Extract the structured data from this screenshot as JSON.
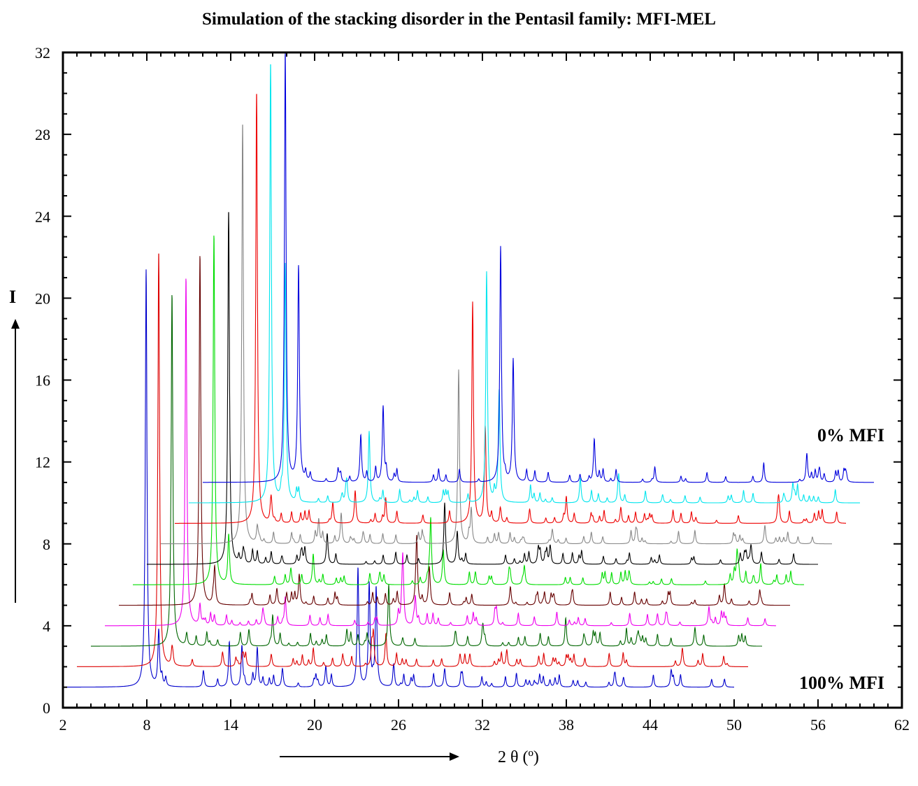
{
  "chart_data": {
    "type": "line",
    "title": "Simulation of the stacking disorder in the Pentasil family: MFI-MEL",
    "xlabel": "2 θ  (º)",
    "ylabel": "I",
    "xlim": [
      2,
      62
    ],
    "ylim": [
      0,
      32
    ],
    "xticks": [
      "2",
      "8",
      "14",
      "20",
      "26",
      "32",
      "38",
      "44",
      "50",
      "56",
      "62"
    ],
    "yticks": [
      "0",
      "4",
      "8",
      "12",
      "16",
      "20",
      "24",
      "28",
      "32"
    ],
    "grid": false,
    "annotations": {
      "bottom_series_label": "100% MFI",
      "top_series_label": "0% MFI"
    },
    "series": [
      {
        "color": "#0000cc",
        "x_start": 2.0,
        "x_end": 50.0,
        "baseline": 1.0,
        "peaks": [
          [
            7.95,
            21.4
          ],
          [
            8.85,
            3.7
          ],
          [
            13.9,
            3.2
          ],
          [
            14.8,
            3.0
          ],
          [
            15.9,
            2.9
          ],
          [
            17.7,
            1.9
          ],
          [
            20.8,
            2.0
          ],
          [
            23.1,
            6.8
          ],
          [
            23.9,
            5.8
          ],
          [
            24.4,
            5.8
          ],
          [
            29.3,
            1.9
          ],
          [
            45.5,
            1.8
          ]
        ]
      },
      {
        "color": "#dd0000",
        "x_start": 3.0,
        "x_end": 51.0,
        "baseline": 2.0,
        "peaks": [
          [
            8.85,
            22.3
          ],
          [
            9.8,
            2.8
          ],
          [
            14.9,
            2.5
          ],
          [
            16.9,
            2.6
          ],
          [
            24.2,
            3.6
          ],
          [
            25.1,
            3.6
          ],
          [
            30.4,
            2.6
          ],
          [
            31.1,
            2.6
          ],
          [
            46.3,
            2.9
          ]
        ]
      },
      {
        "color": "#006600",
        "x_start": 4.0,
        "x_end": 52.0,
        "baseline": 3.0,
        "peaks": [
          [
            9.8,
            20.2
          ],
          [
            10.85,
            3.6
          ],
          [
            15.3,
            3.8
          ],
          [
            17.0,
            4.5
          ],
          [
            25.3,
            6.0
          ],
          [
            26.3,
            3.4
          ],
          [
            32.0,
            3.6
          ],
          [
            47.2,
            3.9
          ]
        ]
      },
      {
        "color": "#ee00ee",
        "x_start": 5.0,
        "x_end": 53.0,
        "baseline": 4.0,
        "peaks": [
          [
            10.8,
            21.0
          ],
          [
            11.8,
            5.0
          ],
          [
            16.3,
            4.8
          ],
          [
            17.9,
            5.4
          ],
          [
            26.3,
            7.2
          ],
          [
            27.2,
            5.4
          ],
          [
            33.0,
            4.8
          ],
          [
            48.2,
            4.9
          ]
        ]
      },
      {
        "color": "#660000",
        "x_start": 6.0,
        "x_end": 54.0,
        "baseline": 5.0,
        "peaks": [
          [
            11.8,
            22.1
          ],
          [
            12.85,
            6.8
          ],
          [
            17.3,
            5.8
          ],
          [
            18.9,
            6.5
          ],
          [
            27.3,
            8.3
          ],
          [
            28.2,
            6.8
          ],
          [
            34.0,
            5.9
          ],
          [
            49.3,
            5.8
          ]
        ]
      },
      {
        "color": "#00dd00",
        "x_start": 7.0,
        "x_end": 55.0,
        "baseline": 6.0,
        "peaks": [
          [
            12.8,
            23.1
          ],
          [
            13.85,
            8.2
          ],
          [
            18.3,
            6.8
          ],
          [
            19.9,
            7.5
          ],
          [
            28.3,
            9.2
          ],
          [
            29.2,
            7.7
          ],
          [
            35.0,
            6.9
          ],
          [
            50.2,
            6.9
          ]
        ]
      },
      {
        "color": "#000000",
        "x_start": 8.0,
        "x_end": 56.0,
        "baseline": 7.0,
        "peaks": [
          [
            13.85,
            24.3
          ],
          [
            14.9,
            7.7
          ],
          [
            19.3,
            7.8
          ],
          [
            20.9,
            8.5
          ],
          [
            29.3,
            10.0
          ],
          [
            30.2,
            8.6
          ],
          [
            36.0,
            7.8
          ],
          [
            51.2,
            7.8
          ]
        ]
      },
      {
        "color": "#888888",
        "x_start": 9.0,
        "x_end": 57.0,
        "baseline": 8.0,
        "peaks": [
          [
            14.85,
            28.6
          ],
          [
            15.9,
            8.8
          ],
          [
            20.3,
            8.8
          ],
          [
            21.9,
            9.5
          ],
          [
            30.3,
            16.5
          ],
          [
            31.2,
            9.7
          ],
          [
            37.0,
            8.7
          ],
          [
            52.2,
            8.9
          ]
        ]
      },
      {
        "color": "#ee0000",
        "x_start": 10.0,
        "x_end": 58.0,
        "baseline": 9.0,
        "peaks": [
          [
            15.85,
            30.1
          ],
          [
            16.9,
            10.0
          ],
          [
            21.3,
            10.0
          ],
          [
            22.9,
            10.6
          ],
          [
            31.3,
            19.8
          ],
          [
            32.2,
            13.7
          ],
          [
            38.0,
            9.8
          ],
          [
            53.2,
            9.9
          ]
        ]
      },
      {
        "color": "#00e5ee",
        "x_start": 11.0,
        "x_end": 59.0,
        "baseline": 10.0,
        "peaks": [
          [
            16.85,
            31.5
          ],
          [
            17.9,
            21.6
          ],
          [
            22.3,
            11.0
          ],
          [
            23.9,
            13.5
          ],
          [
            32.3,
            21.0
          ],
          [
            33.2,
            15.0
          ],
          [
            39.0,
            11.2
          ],
          [
            54.2,
            10.9
          ]
        ]
      },
      {
        "color": "#0000dd",
        "x_start": 12.0,
        "x_end": 60.0,
        "baseline": 11.0,
        "peaks": [
          [
            17.9,
            32.0
          ],
          [
            18.85,
            21.5
          ],
          [
            23.3,
            13.3
          ],
          [
            24.9,
            14.7
          ],
          [
            33.3,
            22.5
          ],
          [
            34.2,
            17.0
          ],
          [
            40.0,
            13.1
          ],
          [
            55.2,
            12.4
          ]
        ]
      }
    ]
  }
}
